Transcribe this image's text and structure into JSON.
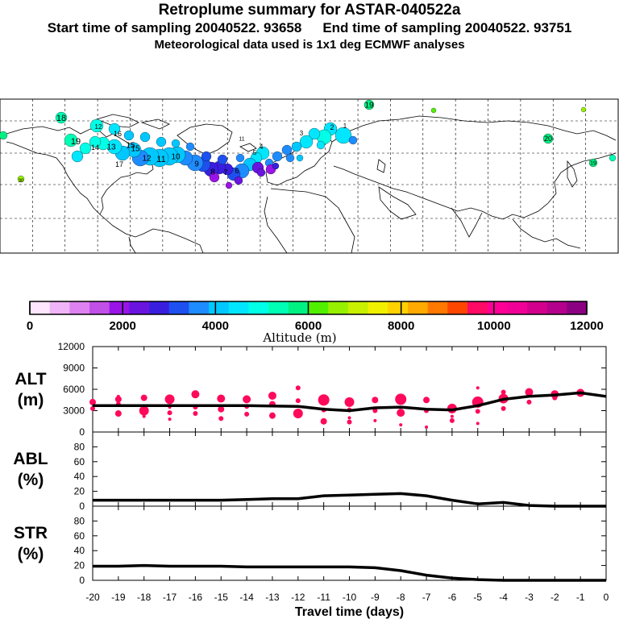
{
  "header": {
    "title": "Retroplume summary for ASTAR-040522a",
    "start_label": "Start time of sampling 20040522. 93658",
    "end_label": "End time of sampling 20040522. 93751",
    "met_label": "Meteorological data used is 1x1 deg ECMWF analyses"
  },
  "map": {
    "day_labels": [
      "18",
      "19",
      "19",
      "12",
      "14",
      "15",
      "16",
      "17",
      "15",
      "13",
      "12",
      "11",
      "10",
      "9",
      "8",
      "7",
      "6",
      "5",
      "4",
      "3",
      "2",
      "1",
      "11",
      "20",
      "19",
      "30"
    ]
  },
  "colorbar": {
    "colors": [
      "#ffe6ff",
      "#f0b4f8",
      "#dd82f0",
      "#c050e8",
      "#9a14e8",
      "#6a14e0",
      "#3a1ee0",
      "#1e50f0",
      "#1e8cff",
      "#00c8ff",
      "#00e6ff",
      "#00ffe6",
      "#00ffb4",
      "#00f082",
      "#50f000",
      "#96f000",
      "#c8f000",
      "#f0f000",
      "#ffd200",
      "#ffaa00",
      "#ff7800",
      "#ff4600",
      "#ff0a64",
      "#ff0096",
      "#f00096",
      "#d2008c",
      "#b4008c",
      "#8c0082"
    ],
    "ticks": [
      "0",
      "2000",
      "4000",
      "6000",
      "8000",
      "10000",
      "12000"
    ],
    "label": "Altitude (m)"
  },
  "chart_data": [
    {
      "type": "line",
      "name": "ALT",
      "ylabel": "ALT (m)",
      "ylabel_lines": [
        "ALT",
        "(m)"
      ],
      "ylim": [
        0,
        12000
      ],
      "yticks": [
        "0",
        "3000",
        "6000",
        "9000",
        "12000"
      ],
      "x": [
        -20,
        -19,
        -18,
        -17,
        -16,
        -15,
        -14,
        -13,
        -12,
        -11,
        -10,
        -9,
        -8,
        -7,
        -6,
        -5,
        -4,
        -3,
        -2,
        -1,
        0
      ],
      "series": [
        {
          "name": "ALT mean",
          "values": [
            3700,
            3700,
            3700,
            3700,
            3700,
            3700,
            3700,
            3650,
            3600,
            3200,
            3000,
            3400,
            3500,
            3200,
            3100,
            3700,
            4600,
            5000,
            5200,
            5500,
            5000
          ]
        }
      ],
      "scatter": [
        {
          "x": -20,
          "y": 4200,
          "s": 4
        },
        {
          "x": -20,
          "y": 3300,
          "s": 3
        },
        {
          "x": -19,
          "y": 4600,
          "s": 4
        },
        {
          "x": -19,
          "y": 3900,
          "s": 3
        },
        {
          "x": -19,
          "y": 2600,
          "s": 4
        },
        {
          "x": -19,
          "y": 5000,
          "s": 2
        },
        {
          "x": -18,
          "y": 4800,
          "s": 4
        },
        {
          "x": -18,
          "y": 3000,
          "s": 6
        },
        {
          "x": -18,
          "y": 2200,
          "s": 2
        },
        {
          "x": -17,
          "y": 4600,
          "s": 6
        },
        {
          "x": -17,
          "y": 3500,
          "s": 2
        },
        {
          "x": -17,
          "y": 2700,
          "s": 3
        },
        {
          "x": -17,
          "y": 1800,
          "s": 2
        },
        {
          "x": -16,
          "y": 5300,
          "s": 5
        },
        {
          "x": -16,
          "y": 3500,
          "s": 3
        },
        {
          "x": -16,
          "y": 2600,
          "s": 3
        },
        {
          "x": -15,
          "y": 4700,
          "s": 5
        },
        {
          "x": -15,
          "y": 3200,
          "s": 4
        },
        {
          "x": -15,
          "y": 1900,
          "s": 3
        },
        {
          "x": -14,
          "y": 4600,
          "s": 5
        },
        {
          "x": -14,
          "y": 3600,
          "s": 3
        },
        {
          "x": -14,
          "y": 2500,
          "s": 3
        },
        {
          "x": -13,
          "y": 5100,
          "s": 5
        },
        {
          "x": -13,
          "y": 3900,
          "s": 4
        },
        {
          "x": -13,
          "y": 2300,
          "s": 4
        },
        {
          "x": -12,
          "y": 6200,
          "s": 3
        },
        {
          "x": -12,
          "y": 4400,
          "s": 3
        },
        {
          "x": -12,
          "y": 2600,
          "s": 6
        },
        {
          "x": -11,
          "y": 4500,
          "s": 7
        },
        {
          "x": -11,
          "y": 1500,
          "s": 4
        },
        {
          "x": -11,
          "y": 3100,
          "s": 3
        },
        {
          "x": -10,
          "y": 4200,
          "s": 6
        },
        {
          "x": -10,
          "y": 3100,
          "s": 3
        },
        {
          "x": -10,
          "y": 1400,
          "s": 3
        },
        {
          "x": -10,
          "y": 2000,
          "s": 2
        },
        {
          "x": -9,
          "y": 4500,
          "s": 4
        },
        {
          "x": -9,
          "y": 3000,
          "s": 3
        },
        {
          "x": -9,
          "y": 1600,
          "s": 2
        },
        {
          "x": -8,
          "y": 4600,
          "s": 7
        },
        {
          "x": -8,
          "y": 2700,
          "s": 5
        },
        {
          "x": -8,
          "y": 1000,
          "s": 2
        },
        {
          "x": -7,
          "y": 4500,
          "s": 4
        },
        {
          "x": -7,
          "y": 3000,
          "s": 3
        },
        {
          "x": -7,
          "y": 700,
          "s": 2
        },
        {
          "x": -6,
          "y": 3300,
          "s": 6
        },
        {
          "x": -6,
          "y": 1600,
          "s": 3
        },
        {
          "x": -6,
          "y": 2200,
          "s": 2
        },
        {
          "x": -5,
          "y": 4200,
          "s": 7
        },
        {
          "x": -5,
          "y": 6200,
          "s": 2
        },
        {
          "x": -5,
          "y": 2900,
          "s": 3
        },
        {
          "x": -5,
          "y": 1200,
          "s": 2
        },
        {
          "x": -4,
          "y": 4700,
          "s": 6
        },
        {
          "x": -4,
          "y": 5600,
          "s": 3
        },
        {
          "x": -4,
          "y": 3300,
          "s": 3
        },
        {
          "x": -3,
          "y": 5600,
          "s": 5
        },
        {
          "x": -3,
          "y": 4200,
          "s": 3
        },
        {
          "x": -2,
          "y": 5300,
          "s": 5
        },
        {
          "x": -2,
          "y": 4800,
          "s": 3
        },
        {
          "x": -1,
          "y": 5500,
          "s": 5
        }
      ]
    },
    {
      "type": "line",
      "name": "ABL",
      "ylabel": "ABL (%)",
      "ylabel_lines": [
        "ABL",
        "(%)"
      ],
      "ylim": [
        0,
        100
      ],
      "yticks": [
        "0",
        "20",
        "40",
        "60",
        "80"
      ],
      "x": [
        -20,
        -19,
        -18,
        -17,
        -16,
        -15,
        -14,
        -13,
        -12,
        -11,
        -10,
        -9,
        -8,
        -7,
        -6,
        -5,
        -4,
        -3,
        -2,
        -1,
        0
      ],
      "series": [
        {
          "name": "ABL",
          "values": [
            8,
            8,
            8,
            8,
            8,
            8,
            9,
            10,
            10,
            14,
            15,
            16,
            17,
            14,
            8,
            3,
            5,
            1,
            0,
            0,
            0
          ]
        }
      ]
    },
    {
      "type": "line",
      "name": "STR",
      "ylabel": "STR (%)",
      "ylabel_lines": [
        "STR",
        "(%)"
      ],
      "ylim": [
        0,
        100
      ],
      "yticks": [
        "0",
        "20",
        "40",
        "60",
        "80"
      ],
      "x": [
        -20,
        -19,
        -18,
        -17,
        -16,
        -15,
        -14,
        -13,
        -12,
        -11,
        -10,
        -9,
        -8,
        -7,
        -6,
        -5,
        -4,
        -3,
        -2,
        -1,
        0
      ],
      "series": [
        {
          "name": "STR",
          "values": [
            19,
            19,
            20,
            19,
            19,
            19,
            18,
            18,
            18,
            18,
            18,
            17,
            13,
            7,
            3,
            1,
            0,
            0,
            0,
            0,
            0
          ]
        }
      ],
      "xlabel": "Travel time (days)",
      "xticks": [
        "-20",
        "-19",
        "-18",
        "-17",
        "-16",
        "-15",
        "-14",
        "-13",
        "-12",
        "-11",
        "-10",
        "-9",
        "-8",
        "-7",
        "-6",
        "-5",
        "-4",
        "-3",
        "-2",
        "-1",
        "0"
      ]
    }
  ]
}
